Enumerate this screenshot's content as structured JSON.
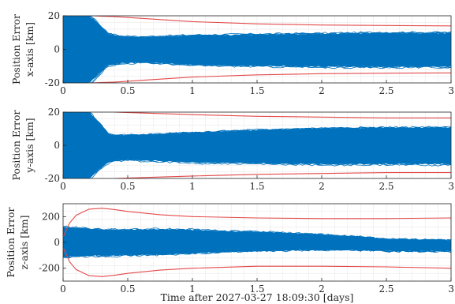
{
  "colors": {
    "band": "#0072BD",
    "bound": "#E34A4A",
    "grid": "#e6e6e6",
    "axis": "#262626"
  },
  "chart_data": [
    {
      "type": "area",
      "ylabel_line1": "Position Error",
      "ylabel_line2": "x-axis [km]",
      "xlabel": "",
      "xlim": [
        0,
        3
      ],
      "ylim": [
        -20,
        20
      ],
      "xticks": [
        "0",
        "0.5",
        "1",
        "1.5",
        "2",
        "2.5",
        "3"
      ],
      "yticks": [
        "20",
        "0",
        "-20"
      ],
      "grid": true,
      "series": [
        {
          "role": "ensemble-upper",
          "x": [
            0,
            0.2,
            0.28,
            0.35,
            0.45,
            0.6,
            0.8,
            1.0,
            1.5,
            2.0,
            2.5,
            3.0
          ],
          "y": [
            20,
            20,
            14,
            9,
            7.5,
            7,
            7.5,
            8,
            8.5,
            9,
            9.5,
            9.5
          ]
        },
        {
          "role": "ensemble-lower",
          "x": [
            0,
            0.2,
            0.28,
            0.35,
            0.45,
            0.6,
            0.8,
            1.0,
            1.5,
            2.0,
            2.5,
            3.0
          ],
          "y": [
            -20,
            -20,
            -14,
            -9,
            -8,
            -7.5,
            -8,
            -9,
            -9.5,
            -10,
            -10,
            -10
          ]
        },
        {
          "role": "bound-upper",
          "x": [
            0.22,
            0.4,
            0.6,
            0.8,
            1.0,
            1.5,
            2.0,
            2.5,
            3.0
          ],
          "y": [
            20,
            19.5,
            18.5,
            17.5,
            16.5,
            15.2,
            14.5,
            14.2,
            14.0
          ]
        },
        {
          "role": "bound-lower",
          "x": [
            0.22,
            0.4,
            0.6,
            0.8,
            1.0,
            1.5,
            2.0,
            2.5,
            3.0
          ],
          "y": [
            -20,
            -19.5,
            -18.5,
            -17.5,
            -16.5,
            -15.2,
            -14.5,
            -14.2,
            -14.0
          ]
        }
      ]
    },
    {
      "type": "area",
      "ylabel_line1": "Position Error",
      "ylabel_line2": "y-axis [km]",
      "xlabel": "",
      "xlim": [
        0,
        3
      ],
      "ylim": [
        -20,
        20
      ],
      "xticks": [
        "0",
        "0.5",
        "1",
        "1.5",
        "2",
        "2.5",
        "3"
      ],
      "yticks": [
        "20",
        "0",
        "-20"
      ],
      "grid": true,
      "series": [
        {
          "role": "ensemble-upper",
          "x": [
            0,
            0.2,
            0.28,
            0.35,
            0.4,
            0.5,
            0.7,
            1.0,
            1.5,
            2.0,
            2.5,
            3.0
          ],
          "y": [
            20,
            20,
            13,
            7,
            5.5,
            6,
            6.5,
            7.5,
            9,
            10,
            10.5,
            10.5
          ]
        },
        {
          "role": "ensemble-lower",
          "x": [
            0,
            0.2,
            0.28,
            0.35,
            0.4,
            0.5,
            0.7,
            1.0,
            1.5,
            2.0,
            2.5,
            3.0
          ],
          "y": [
            -20,
            -20,
            -14,
            -10,
            -9,
            -8.5,
            -9,
            -10,
            -10.5,
            -11,
            -11,
            -11
          ]
        },
        {
          "role": "bound-upper",
          "x": [
            0.4,
            0.6,
            0.8,
            1.0,
            1.5,
            2.0,
            2.5,
            3.0
          ],
          "y": [
            20,
            19.5,
            19,
            18.5,
            17.5,
            17,
            16.5,
            16.5
          ]
        },
        {
          "role": "bound-lower",
          "x": [
            0.4,
            0.6,
            0.8,
            1.0,
            1.5,
            2.0,
            2.5,
            3.0
          ],
          "y": [
            -20,
            -19.5,
            -19,
            -18.5,
            -17.5,
            -17,
            -16.5,
            -16.5
          ]
        }
      ]
    },
    {
      "type": "area",
      "ylabel_line1": "Position Error",
      "ylabel_line2": "z-axis [km]",
      "xlabel": "Time after 2027-03-27 18:09:30 [days]",
      "xlim": [
        0,
        3
      ],
      "ylim": [
        -300,
        300
      ],
      "xticks": [
        "0",
        "0.5",
        "1",
        "1.5",
        "2",
        "2.5",
        "3"
      ],
      "yticks": [
        "200",
        "0",
        "-200"
      ],
      "grid": true,
      "series": [
        {
          "role": "ensemble-upper",
          "x": [
            0,
            0.1,
            0.25,
            0.5,
            0.75,
            1.0,
            1.25,
            1.5,
            1.75,
            2.0,
            2.25,
            2.5,
            2.75,
            3.0
          ],
          "y": [
            120,
            110,
            100,
            95,
            100,
            95,
            85,
            80,
            70,
            60,
            45,
            25,
            20,
            15
          ]
        },
        {
          "role": "ensemble-lower",
          "x": [
            0,
            0.1,
            0.25,
            0.5,
            0.75,
            1.0,
            1.25,
            1.5,
            1.75,
            2.0,
            2.25,
            2.5,
            2.75,
            3.0
          ],
          "y": [
            -110,
            -105,
            -100,
            -95,
            -90,
            -80,
            -70,
            -65,
            -60,
            -55,
            -55,
            -65,
            -65,
            -65
          ]
        },
        {
          "role": "bound-upper",
          "x": [
            0,
            0.05,
            0.1,
            0.2,
            0.3,
            0.4,
            0.5,
            0.75,
            1.0,
            1.5,
            2.0,
            2.5,
            3.0
          ],
          "y": [
            40,
            150,
            210,
            258,
            265,
            255,
            240,
            215,
            200,
            190,
            185,
            185,
            190
          ]
        },
        {
          "role": "bound-lower",
          "x": [
            0,
            0.05,
            0.1,
            0.2,
            0.3,
            0.4,
            0.5,
            0.75,
            1.0,
            1.5,
            2.0,
            2.5,
            3.0
          ],
          "y": [
            -40,
            -150,
            -210,
            -258,
            -265,
            -255,
            -240,
            -215,
            -200,
            -185,
            -185,
            -190,
            -200
          ]
        }
      ]
    }
  ]
}
